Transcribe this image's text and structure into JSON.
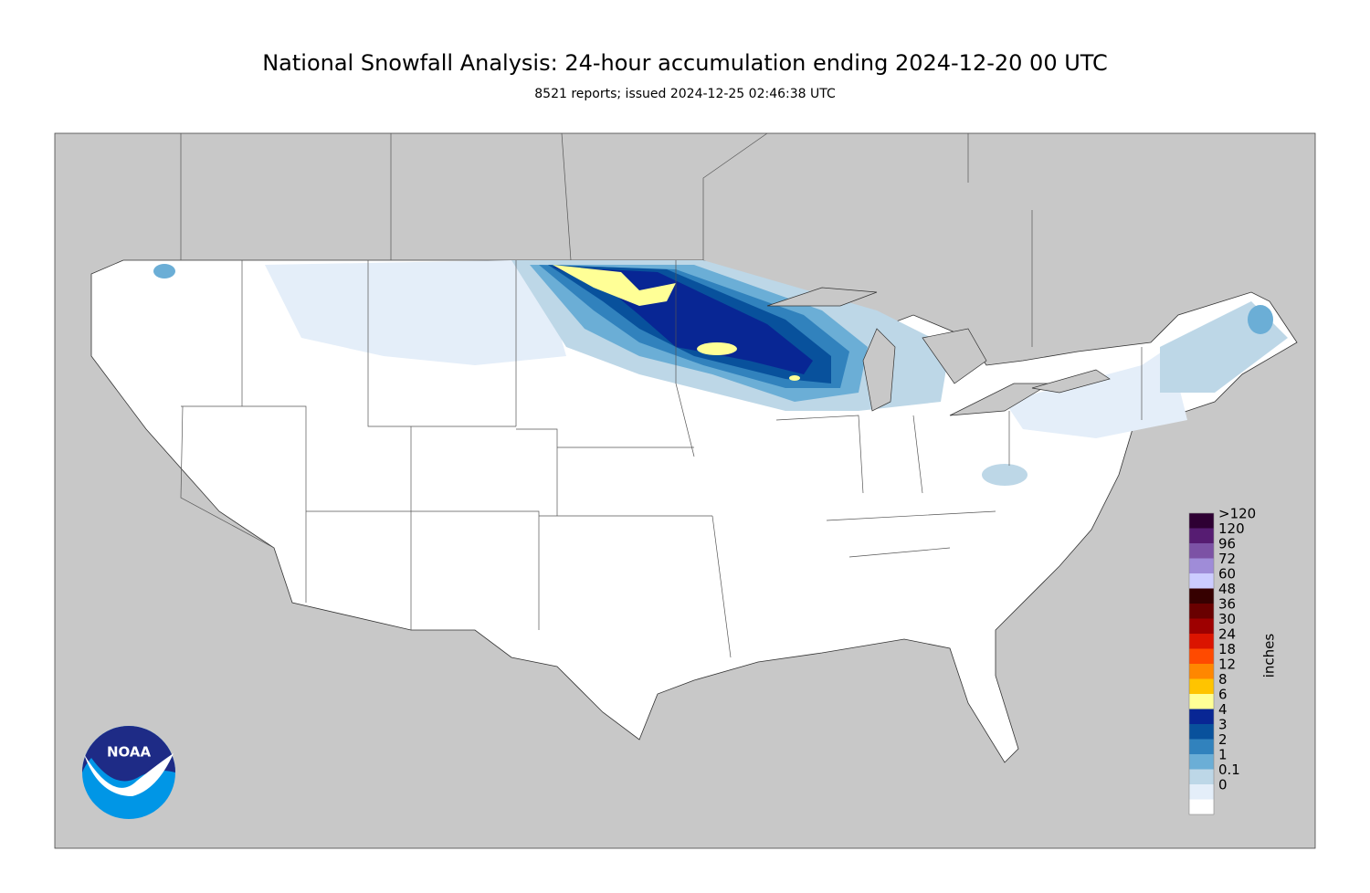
{
  "header": {
    "title": "National Snowfall Analysis: 24-hour accumulation ending 2024-12-20 00 UTC",
    "subtitle": "8521 reports; issued 2024-12-25 02:46:38 UTC"
  },
  "logo": {
    "text": "NOAA"
  },
  "legend": {
    "unit": "inches",
    "items": [
      {
        "label": ">120",
        "color": "#2e0033"
      },
      {
        "label": 120,
        "color": "#561c72"
      },
      {
        "label": 96,
        "color": "#7c52a5"
      },
      {
        "label": 72,
        "color": "#9f8cd8"
      },
      {
        "label": 60,
        "color": "#ccccff"
      },
      {
        "label": 48,
        "color": "#360000"
      },
      {
        "label": 36,
        "color": "#690000"
      },
      {
        "label": 30,
        "color": "#9e0000"
      },
      {
        "label": 24,
        "color": "#db1400"
      },
      {
        "label": 18,
        "color": "#ff4a00"
      },
      {
        "label": 12,
        "color": "#ff8700"
      },
      {
        "label": 8,
        "color": "#ffc400"
      },
      {
        "label": 6,
        "color": "#ffff96"
      },
      {
        "label": 4,
        "color": "#082694"
      },
      {
        "label": 3,
        "color": "#08519c"
      },
      {
        "label": 2,
        "color": "#3182bd"
      },
      {
        "label": 1,
        "color": "#6baed6"
      },
      {
        "label": 0.1,
        "color": "#bdd7e7"
      },
      {
        "label": 0,
        "color": "#e4eef9"
      }
    ]
  }
}
